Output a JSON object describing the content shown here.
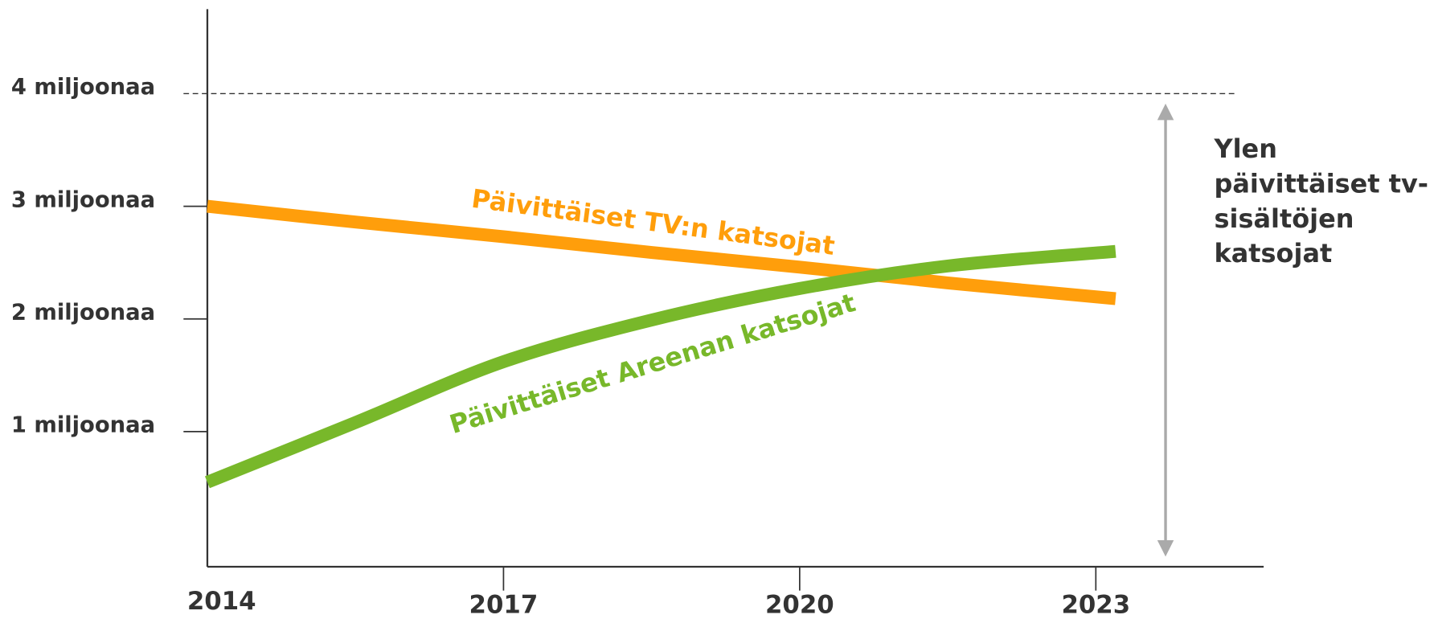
{
  "chart_data": {
    "type": "line",
    "x": [
      2014,
      2015.5,
      2017,
      2018.5,
      2020,
      2021.5,
      2023.2
    ],
    "series": [
      {
        "name": "Päivittäiset TV:n katsojat",
        "color": "#ff9e0b",
        "values": [
          3.0,
          2.86,
          2.73,
          2.59,
          2.46,
          2.32,
          2.18
        ]
      },
      {
        "name": "Päivittäiset Areenan katsojat",
        "color": "#78b82a",
        "values": [
          0.55,
          1.08,
          1.62,
          1.99,
          2.27,
          2.47,
          2.6
        ]
      }
    ],
    "xlim": [
      2014,
      2024.7
    ],
    "xticks": [
      2014,
      2017,
      2020,
      2023
    ],
    "ylim": [
      -0.2,
      4.75
    ],
    "yticks": [
      {
        "value": 1,
        "label": "1 miljoonaa"
      },
      {
        "value": 2,
        "label": "2 miljoonaa"
      },
      {
        "value": 3,
        "label": "3 miljoonaa"
      },
      {
        "value": 4,
        "label": "4 miljoonaa"
      }
    ],
    "annotation": [
      "Ylen",
      "päivittäiset tv-",
      "sisältöjen",
      "katsojat"
    ]
  }
}
